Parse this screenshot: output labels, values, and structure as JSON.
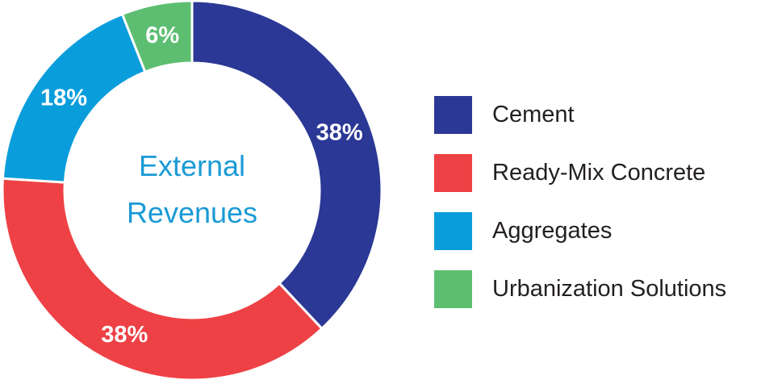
{
  "chart_data": {
    "type": "pie",
    "donut": true,
    "center_label": [
      "External",
      "Revenues"
    ],
    "categories": [
      "Cement",
      "Ready-Mix Concrete",
      "Aggregates",
      "Urbanization Solutions"
    ],
    "values": [
      38,
      38,
      18,
      6
    ],
    "data_labels": [
      "38%",
      "38%",
      "18%",
      "6%"
    ],
    "colors": [
      "#2B3895",
      "#EE4145",
      "#0A9DDB",
      "#5DBE72"
    ],
    "center_label_color": "#1A9AD6",
    "legend_position": "right"
  }
}
